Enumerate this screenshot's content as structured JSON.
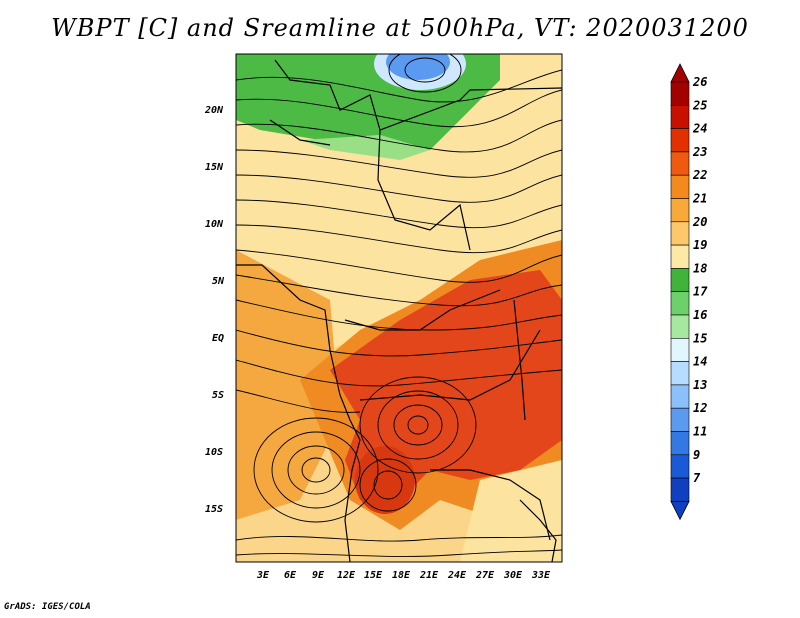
{
  "title": "WBPT [C] and Sreamline at 500hPa, VT: 2020031200",
  "credit": "GrADS: IGES/COLA",
  "lat_labels": [
    "20N",
    "15N",
    "10N",
    "5N",
    "EQ",
    "5S",
    "10S",
    "15S"
  ],
  "lon_labels": [
    "3E",
    "6E",
    "9E",
    "12E",
    "15E",
    "18E",
    "21E",
    "24E",
    "27E",
    "30E",
    "33E"
  ],
  "colorbar": {
    "labels": [
      "26",
      "25",
      "24",
      "23",
      "22",
      "21",
      "20",
      "19",
      "18",
      "17",
      "16",
      "15",
      "14",
      "13",
      "12",
      "11",
      "9",
      "7"
    ],
    "colors": [
      "#a50000",
      "#c81000",
      "#e23000",
      "#f05a10",
      "#f48a1e",
      "#f9a93a",
      "#fcc86a",
      "#fde8a6",
      "#40b43a",
      "#6ed06a",
      "#a6e8a0",
      "#e2f6ff",
      "#b6dcff",
      "#8cc0fa",
      "#5a9af0",
      "#3478e4",
      "#1a5ad6",
      "#1040c0"
    ]
  },
  "map_colors": {
    "hot": "#e2461a",
    "orange": "#f08b24",
    "light_orange": "#f8b04a",
    "yellow": "#fde3a0",
    "green": "#4cba44",
    "light_green": "#98df86",
    "blue": "#5a9af0"
  }
}
